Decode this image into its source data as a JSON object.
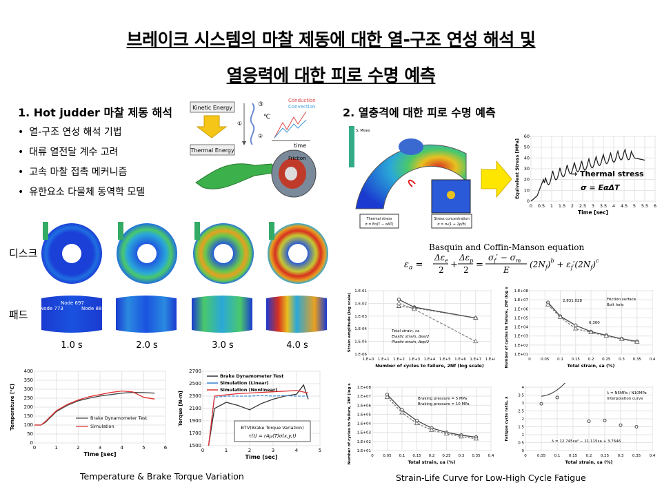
{
  "title": {
    "line1": "브레이크 시스템의 마찰 제동에 대한 열-구조 연성 해석 및",
    "line2": "열응력에 대한 피로 수명 예측"
  },
  "section1": {
    "heading": "1. Hot judder 마찰 제동 해석",
    "bullets": [
      "열-구조 연성 해석 기법",
      "대류 열전달 계수 고려",
      "고속 마찰 접촉 메커니즘",
      "유한요소 다물체 동역학 모델"
    ],
    "energy": {
      "kinetic": "Kinetic Energy",
      "thermal": "Thermal Energy",
      "n1": "①",
      "n2": "②",
      "n3": "③",
      "conduction": "Conduction",
      "convection": "Convection",
      "unit": "℃",
      "time": "time",
      "friction": "Friction"
    },
    "row_disc": "디스크",
    "row_pad": "패드",
    "nodes": [
      "Node 697",
      "Node 773",
      "Node 883"
    ],
    "times": [
      "1.0 s",
      "2.0 s",
      "3.0 s",
      "4.0 s"
    ],
    "temp_chart": {
      "ylabel": "Temperature [℃]",
      "xlabel": "Time [sec]",
      "yticks": [
        "0",
        "50",
        "100",
        "150",
        "200",
        "250",
        "300",
        "350",
        "400"
      ],
      "xticks": [
        "0",
        "1",
        "2",
        "3",
        "4",
        "5",
        "6"
      ],
      "legend": [
        "Brake Dynamometer Test",
        "Simulation"
      ]
    },
    "torque_chart": {
      "ylabel": "Torque [N-m]",
      "xlabel": "Time [sec]",
      "yticks": [
        "1500",
        "1700",
        "1900",
        "2100",
        "2300",
        "2500",
        "2700"
      ],
      "xticks": [
        "0",
        "1",
        "2",
        "3",
        "4",
        "5"
      ],
      "legend": [
        "Brake Dynamometer Test",
        "Simulation (Linear)",
        "Simulation (Nonlinear)"
      ],
      "box_title": "BTV(Brake Torque Variation)",
      "box_eq": "τ(t) = rAμ(T)σ(x,y,t)"
    },
    "caption": "Temperature & Brake Torque Variation"
  },
  "section2": {
    "heading": "2. 열충격에 대한 피로 수명 예측",
    "fe_labels": {
      "box1a": "Thermal stress",
      "box1b": "σ = Eα(T − αΔT)",
      "box2a": "Stress concentration",
      "box2b": "σ = σ₀(1 + 2ρ/θ)",
      "legend": "S, Mises"
    },
    "stress_chart": {
      "ylabel": "Equivalent Stress [MPa]",
      "xlabel": "Time [sec]",
      "yticks": [
        "0",
        "10",
        "20",
        "30",
        "40",
        "50",
        "60"
      ],
      "xticks": [
        "0",
        "0.5",
        "1",
        "1.5",
        "2",
        "2.5",
        "3",
        "3.5",
        "4",
        "4.5",
        "5",
        "5.5",
        "6"
      ],
      "label": "→ Thermal stress",
      "eq": "σ = EαΔT"
    },
    "eq_title": "Basquin and Coffin-Manson  equation",
    "eq": "εa = Δεe/2 + Δεp/2 = (σf′ − σm)/E (2Nf)^b + εf′(2Nf)^c",
    "tl": {
      "ylabel": "Strain amplitude (log scale)",
      "xlabel": "Number of cycles to failure, 2Nf (log scale)",
      "yticks": [
        "1.E-01",
        "1.E-02",
        "1.E-03",
        "1.E-04",
        "1.E-05",
        "1.E-06"
      ],
      "xticks": [
        "1.E+0",
        "1.E+1",
        "1.E+2",
        "1.E+3",
        "1.E+4",
        "1.E+5",
        "1.E+6",
        "1.E+7",
        "1.E+8"
      ],
      "legend": [
        "Total strain, εa",
        "Elastic strain, Δεe/2",
        "Plastic strain, Δεp/2"
      ]
    },
    "tr": {
      "ylabel": "Number of cycles to failure, 2Nf (log scale)",
      "xlabel": "Total strain, εa (%)",
      "yticks": [
        "1.E+08",
        "1.E+07",
        "1.E+06",
        "1.E+05",
        "1.E+04",
        "1.E+03",
        "1.E+02",
        "1.E+01"
      ],
      "xticks": [
        "0",
        "0.05",
        "0.1",
        "0.15",
        "0.2",
        "0.25",
        "0.3",
        "0.35",
        "0.4"
      ],
      "legend": [
        "Friction surface",
        "Bolt hole"
      ],
      "ann1": "2,831,028",
      "ann2": "6,360"
    },
    "bl": {
      "ylabel": "Number of cycles to failure, 2Nf (log scale)",
      "xlabel": "Total strain, εa (%)",
      "yticks": [
        "1.E+08",
        "1.E+07",
        "1.E+06",
        "1.E+05",
        "1.E+04",
        "1.E+03",
        "1.E+02",
        "1.E+01"
      ],
      "xticks": [
        "0",
        "0.05",
        "0.1",
        "0.15",
        "0.2",
        "0.25",
        "0.3",
        "0.35",
        "0.4"
      ],
      "legend": [
        "Braking pressure = 5 MPa",
        "Braking pressure = 10 MPa"
      ]
    },
    "br": {
      "ylabel": "Fatigue cycle ratio, λ",
      "xlabel": "Total strain, εa (%)",
      "yticks": [
        "4",
        "3.5",
        "3",
        "2.5",
        "2",
        "1.5",
        "1",
        "0.5",
        "0"
      ],
      "xticks": [
        "0",
        "0.05",
        "0.1",
        "0.15",
        "0.2",
        "0.25",
        "0.3",
        "0.35",
        "0.4"
      ],
      "legend": [
        "λ = N5MPa / N10MPa",
        "Interpolation curve"
      ],
      "fit": "λ = 12.745εa² − 11.115εa + 3.7646"
    },
    "caption": "Strain-Life Curve for Low-High Cycle Fatigue"
  },
  "chart_data": [
    {
      "type": "line",
      "title": "",
      "xlabel": "Time [sec]",
      "ylabel": "Temperature [℃]",
      "xlim": [
        0,
        6
      ],
      "ylim": [
        0,
        400
      ],
      "series": [
        {
          "name": "Brake Dynamometer Test",
          "x": [
            0,
            0.3,
            0.5,
            1,
            1.5,
            2,
            2.5,
            3,
            3.5,
            4,
            4.5,
            5,
            5.5
          ],
          "y": [
            100,
            100,
            115,
            175,
            210,
            235,
            250,
            262,
            270,
            278,
            282,
            281,
            278
          ]
        },
        {
          "name": "Simulation",
          "x": [
            0,
            0.3,
            0.5,
            1,
            1.5,
            2,
            2.5,
            3,
            3.5,
            4,
            4.5,
            5,
            5.5
          ],
          "y": [
            100,
            100,
            120,
            180,
            215,
            240,
            258,
            270,
            282,
            290,
            285,
            255,
            245
          ]
        }
      ]
    },
    {
      "type": "line",
      "title": "",
      "xlabel": "Time [sec]",
      "ylabel": "Torque [N-m]",
      "xlim": [
        0,
        5
      ],
      "ylim": [
        1500,
        2700
      ],
      "series": [
        {
          "name": "Brake Dynamometer Test",
          "x": [
            0.25,
            0.5,
            1,
            1.5,
            2,
            2.5,
            3,
            3.5,
            4,
            4.3,
            4.5
          ],
          "y": [
            1500,
            2100,
            2200,
            2150,
            2080,
            2180,
            2250,
            2300,
            2330,
            2480,
            2250
          ]
        },
        {
          "name": "Simulation (Linear)",
          "x": [
            0.25,
            0.5,
            1,
            1.5,
            2,
            2.5,
            3,
            3.5,
            4,
            4.5
          ],
          "y": [
            1500,
            2280,
            2300,
            2300,
            2300,
            2310,
            2300,
            2310,
            2300,
            2300
          ]
        },
        {
          "name": "Simulation (Nonlinear)",
          "x": [
            0.25,
            0.5,
            1,
            1.5,
            2,
            2.5,
            3,
            3.5,
            4,
            4.5
          ],
          "y": [
            1500,
            2300,
            2320,
            2340,
            2350,
            2360,
            2370,
            2380,
            2390,
            2350
          ]
        }
      ]
    },
    {
      "type": "line",
      "title": "",
      "xlabel": "Time [sec]",
      "ylabel": "Equivalent Stress [MPa]",
      "xlim": [
        0,
        6
      ],
      "ylim": [
        0,
        60
      ],
      "series": [
        {
          "name": "Thermal stress",
          "x": [
            0,
            0.3,
            0.6,
            1,
            1.5,
            2,
            2.5,
            3,
            3.5,
            4,
            4.5,
            4.8,
            5,
            5.5
          ],
          "y": [
            0,
            5,
            20,
            28,
            32,
            36,
            38,
            41,
            44,
            46,
            49,
            48,
            40,
            38
          ]
        }
      ]
    },
    {
      "type": "line",
      "title": "",
      "xlabel": "Number of cycles to failure, 2Nf (log scale)",
      "ylabel": "Strain amplitude (log scale)",
      "series": [
        {
          "name": "Total strain, εa",
          "x": [
            100,
            1000,
            10000000
          ],
          "y": [
            0.02,
            0.005,
            0.0007
          ]
        },
        {
          "name": "Elastic strain, Δεe/2",
          "x": [
            100,
            1000,
            10000000
          ],
          "y": [
            0.006,
            0.0045,
            0.0007
          ]
        },
        {
          "name": "Plastic strain, Δεp/2",
          "x": [
            100,
            1000,
            10000000
          ],
          "y": [
            0.01,
            0.0035,
            1e-05
          ]
        }
      ]
    },
    {
      "type": "scatter",
      "title": "",
      "xlabel": "Total strain, εa (%)",
      "ylabel": "Number of cycles to failure, 2Nf (log scale)",
      "xlim": [
        0,
        0.4
      ],
      "series": [
        {
          "name": "Friction surface",
          "x": [
            0.06,
            0.1,
            0.15,
            0.2,
            0.25,
            0.3,
            0.35
          ],
          "y": [
            5000000,
            150000,
            15000,
            3000,
            1200,
            500,
            250
          ]
        },
        {
          "name": "Bolt hole",
          "x": [
            0.06,
            0.1,
            0.15,
            0.2,
            0.25,
            0.3,
            0.35
          ],
          "y": [
            2831028,
            120000,
            6360,
            2500,
            1000,
            450,
            220
          ]
        }
      ]
    },
    {
      "type": "scatter",
      "title": "",
      "xlabel": "Total strain, εa (%)",
      "ylabel": "Number of cycles to failure, 2Nf (log scale)",
      "xlim": [
        0,
        0.4
      ],
      "series": [
        {
          "name": "Braking pressure = 5 MPa",
          "x": [
            0.05,
            0.1,
            0.15,
            0.2,
            0.25,
            0.3,
            0.35
          ],
          "y": [
            15000000,
            300000,
            20000,
            3000,
            1000,
            500,
            300
          ]
        },
        {
          "name": "Braking pressure = 10 MPa",
          "x": [
            0.05,
            0.1,
            0.15,
            0.2,
            0.25,
            0.3,
            0.35
          ],
          "y": [
            8000000,
            150000,
            10000,
            1800,
            700,
            350,
            200
          ]
        }
      ]
    },
    {
      "type": "scatter",
      "title": "",
      "xlabel": "Total strain, εa (%)",
      "ylabel": "Fatigue cycle ratio, λ",
      "xlim": [
        0,
        0.4
      ],
      "ylim": [
        0,
        4
      ],
      "series": [
        {
          "name": "λ = N5MPa / N10MPa",
          "x": [
            0.05,
            0.1,
            0.2,
            0.25,
            0.3,
            0.35
          ],
          "y": [
            2.95,
            3.35,
            1.85,
            1.9,
            1.6,
            1.5
          ]
        }
      ]
    }
  ]
}
